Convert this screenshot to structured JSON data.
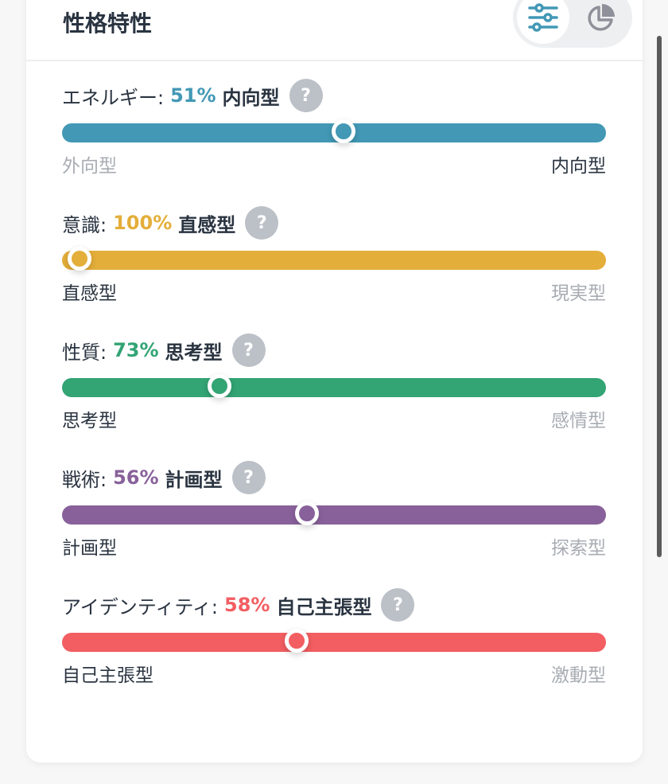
{
  "header": {
    "title": "性格特性",
    "view_toggle": {
      "active": "sliders-icon",
      "options": [
        "sliders-icon",
        "pie-chart-icon"
      ]
    }
  },
  "help_glyph": "?",
  "traits": [
    {
      "name": "エネルギー:",
      "percent": "51%",
      "type": "内向型",
      "value": 51,
      "side": "right",
      "left": "外向型",
      "right": "内向型",
      "color": "#4298b5"
    },
    {
      "name": "意識:",
      "percent": "100%",
      "type": "直感型",
      "value": 100,
      "side": "left",
      "left": "直感型",
      "right": "現実型",
      "color": "#e4ae3a"
    },
    {
      "name": "性質:",
      "percent": "73%",
      "type": "思考型",
      "value": 73,
      "side": "left",
      "left": "思考型",
      "right": "感情型",
      "color": "#33a474"
    },
    {
      "name": "戦術:",
      "percent": "56%",
      "type": "計画型",
      "value": 56,
      "side": "left",
      "left": "計画型",
      "right": "探索型",
      "color": "#88619a"
    },
    {
      "name": "アイデンティティ:",
      "percent": "58%",
      "type": "自己主張型",
      "value": 58,
      "side": "left",
      "left": "自己主張型",
      "right": "激動型",
      "color": "#f25e62"
    }
  ]
}
